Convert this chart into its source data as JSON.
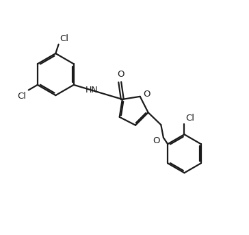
{
  "background_color": "#ffffff",
  "line_color": "#1a1a1a",
  "line_width": 1.6,
  "font_size": 9.5,
  "figsize": [
    3.64,
    3.43
  ],
  "dpi": 100,
  "xlim": [
    0,
    10
  ],
  "ylim": [
    0,
    9.5
  ]
}
